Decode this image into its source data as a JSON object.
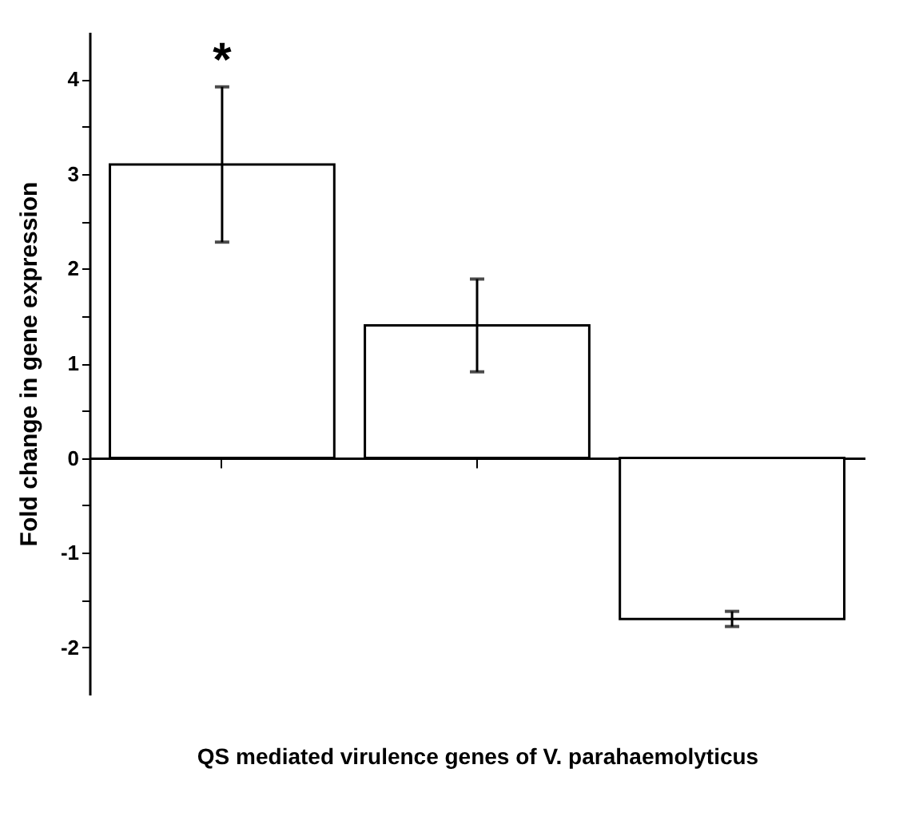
{
  "chart_data": {
    "type": "bar",
    "ylabel": "Fold change in gene expression",
    "xlabel": "QS mediated virulence genes of V. parahaemolyticus",
    "categories": [
      null,
      null,
      null
    ],
    "values": [
      3.1,
      1.4,
      -1.7
    ],
    "errors": [
      0.82,
      0.49,
      0.08
    ],
    "value_labels": [
      "*",
      null,
      null
    ],
    "color": "#ffffff",
    "ylim": [
      -2.5,
      4.5
    ],
    "yticks": [
      -2,
      {
        "value": -1.5,
        "label": null
      },
      -1,
      {
        "value": -0.5,
        "label": null
      },
      0,
      {
        "value": 0.5,
        "label": null
      },
      1,
      {
        "value": 1.5,
        "label": null
      },
      2,
      {
        "value": 2.5,
        "label": null
      },
      3,
      {
        "value": 3.5,
        "label": null
      },
      4
    ],
    "relative": false
  }
}
